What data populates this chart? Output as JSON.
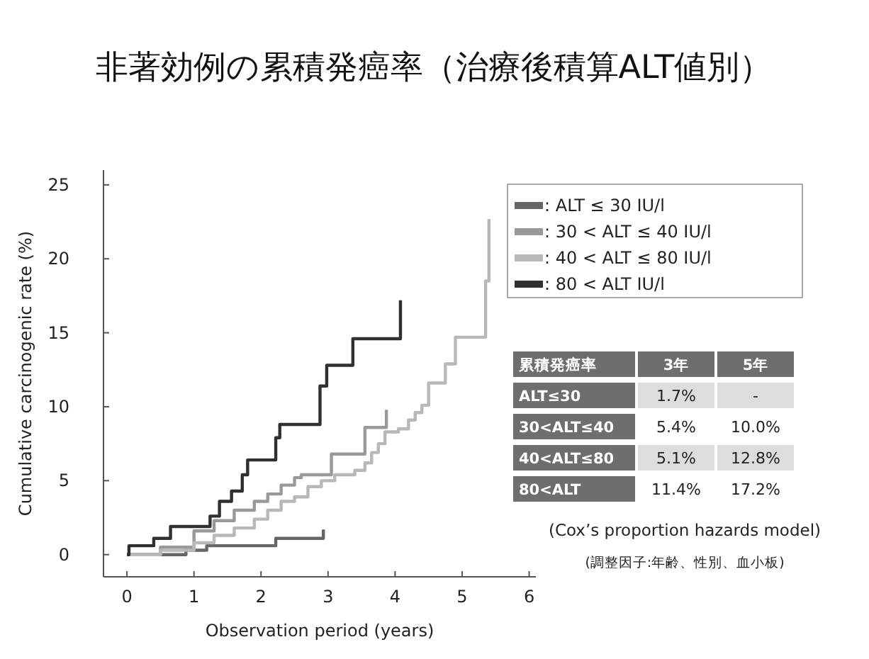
{
  "chart_data": [
    {
      "type": "step",
      "title": "非著効例の累積発癌率（治療後積算ALT値別）",
      "xlabel": "Observation period (years)",
      "ylabel": "Cumulative carcinogenic rate (%)",
      "xlim": [
        -0.35,
        6.1
      ],
      "ylim": [
        -1.5,
        26
      ],
      "xticks": [
        0,
        1,
        2,
        3,
        4,
        5,
        6
      ],
      "yticks": [
        0,
        5,
        10,
        15,
        20,
        25
      ],
      "legend": "right",
      "series": [
        {
          "name": ": ALT ≤ 30 IU/l",
          "color": "#666666",
          "x": [
            0,
            0.88,
            1.19,
            2.22,
            2.93,
            2.93
          ],
          "values": [
            0,
            0.3,
            0.6,
            1.1,
            1.1,
            1.7
          ]
        },
        {
          "name": ": 30 < ALT ≤ 40 IU/l",
          "color": "#999999",
          "x": [
            0,
            0.5,
            1.0,
            1.3,
            1.6,
            1.9,
            2.1,
            2.3,
            2.5,
            2.6,
            3.05,
            3.55,
            3.87,
            3.87
          ],
          "values": [
            0,
            0.5,
            1.6,
            2.3,
            3.0,
            3.6,
            4.1,
            4.7,
            5.2,
            5.4,
            6.8,
            8.6,
            8.6,
            9.8
          ]
        },
        {
          "name": ": 40 < ALT ≤ 80 IU/l",
          "color": "#b8b8b8",
          "x": [
            0,
            0.5,
            1.0,
            1.3,
            1.6,
            1.9,
            2.1,
            2.3,
            2.5,
            2.7,
            2.9,
            3.1,
            3.4,
            3.55,
            3.65,
            3.75,
            3.85,
            4.05,
            4.2,
            4.3,
            4.4,
            4.5,
            4.75,
            4.9,
            5.35,
            5.4,
            5.4
          ],
          "values": [
            0,
            0.3,
            0.8,
            1.3,
            1.8,
            2.4,
            3.0,
            3.6,
            3.9,
            4.6,
            5.0,
            5.4,
            5.7,
            6.2,
            6.9,
            7.5,
            8.3,
            8.5,
            9.1,
            9.6,
            10.1,
            11.6,
            12.9,
            14.7,
            18.5,
            18.5,
            22.7
          ]
        },
        {
          "name": ": 80 < ALT IU/l",
          "color": "#303030",
          "x": [
            0,
            0.03,
            0.4,
            0.65,
            1.24,
            1.38,
            1.56,
            1.72,
            1.8,
            2.22,
            2.28,
            2.88,
            2.98,
            3.37,
            4.08,
            4.08
          ],
          "values": [
            0,
            0.6,
            1.1,
            1.9,
            2.6,
            3.6,
            4.3,
            5.4,
            6.4,
            7.9,
            8.8,
            11.4,
            12.8,
            14.6,
            14.6,
            17.2
          ]
        }
      ]
    },
    {
      "type": "other",
      "title": "累積発癌率",
      "categories": [
        "3年",
        "5年"
      ],
      "y_categories": [
        "ALT≤30",
        "30<ALT≤40",
        "40<ALT≤80",
        "80<ALT"
      ],
      "cell_labels": [
        [
          "1.7%",
          "-"
        ],
        [
          "5.4%",
          "10.0%"
        ],
        [
          "5.1%",
          "12.8%"
        ],
        [
          "11.4%",
          "17.2%"
        ]
      ],
      "annotations": [
        "(Cox’s proportion hazards model)",
        "(調整因子:年齢、性別、血小板)"
      ]
    }
  ]
}
